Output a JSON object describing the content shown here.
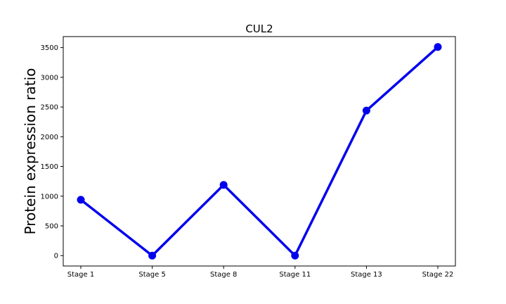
{
  "chart_data": {
    "type": "line",
    "title": "CUL2",
    "xlabel": "",
    "ylabel": "Protein expression ratio",
    "categories": [
      "Stage 1",
      "Stage 5",
      "Stage 8",
      "Stage 11",
      "Stage 13",
      "Stage 22"
    ],
    "series": [
      {
        "values": [
          940,
          0,
          1190,
          0,
          2440,
          3510
        ]
      }
    ],
    "ylim": [
      -175,
      3685
    ],
    "yticks": [
      0,
      500,
      1000,
      1500,
      2000,
      2500,
      3000,
      3500
    ],
    "grid": false,
    "legend": "none",
    "colors": {
      "series": "#0000ee",
      "axes": "#000000",
      "background": "#ffffff"
    }
  }
}
